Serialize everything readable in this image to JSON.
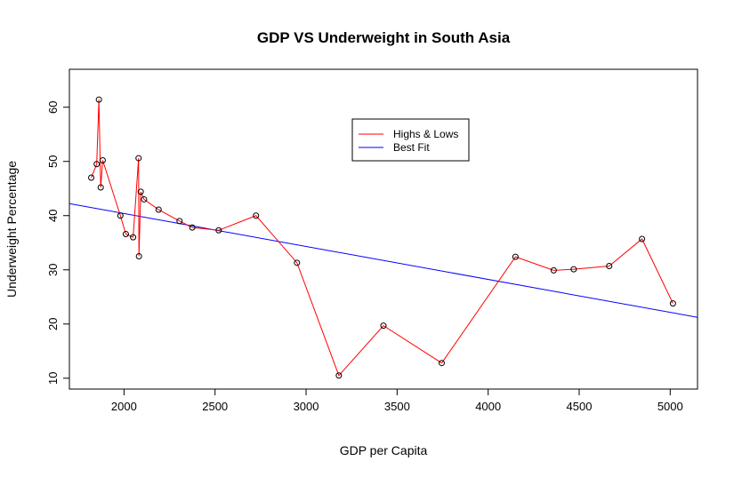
{
  "chart_data": {
    "type": "line",
    "title": "GDP VS Underweight in South Asia",
    "xlabel": "GDP per Capita",
    "ylabel": "Underweight Percentage",
    "xlim": [
      1700,
      5150
    ],
    "ylim": [
      8,
      67
    ],
    "xticks": [
      2000,
      2500,
      3000,
      3500,
      4000,
      4500,
      5000
    ],
    "yticks": [
      10,
      20,
      30,
      40,
      50,
      60
    ],
    "grid": false,
    "legend_position": "top-center",
    "series": [
      {
        "name": "Highs & Lows",
        "color": "#ff0000",
        "marker": "open-circle",
        "points": [
          [
            1820,
            47.0
          ],
          [
            1850,
            49.5
          ],
          [
            1862,
            61.4
          ],
          [
            1872,
            45.2
          ],
          [
            1883,
            50.2
          ],
          [
            1980,
            40.0
          ],
          [
            2010,
            36.6
          ],
          [
            2050,
            36.0
          ],
          [
            2080,
            50.6
          ],
          [
            2082,
            32.5
          ],
          [
            2092,
            44.4
          ],
          [
            2110,
            43.0
          ],
          [
            2190,
            41.1
          ],
          [
            2305,
            39.0
          ],
          [
            2375,
            37.8
          ],
          [
            2520,
            37.3
          ],
          [
            2725,
            40.0
          ],
          [
            2950,
            31.3
          ],
          [
            3180,
            10.5
          ],
          [
            3425,
            19.7
          ],
          [
            3745,
            12.8
          ],
          [
            4150,
            32.4
          ],
          [
            4360,
            29.9
          ],
          [
            4470,
            30.1
          ],
          [
            4665,
            30.7
          ],
          [
            4845,
            35.7
          ],
          [
            5015,
            23.8
          ]
        ]
      },
      {
        "name": "Best Fit",
        "color": "#0000ff",
        "type": "regression-line",
        "intercept": 52.55,
        "slope": -0.00608
      }
    ]
  }
}
